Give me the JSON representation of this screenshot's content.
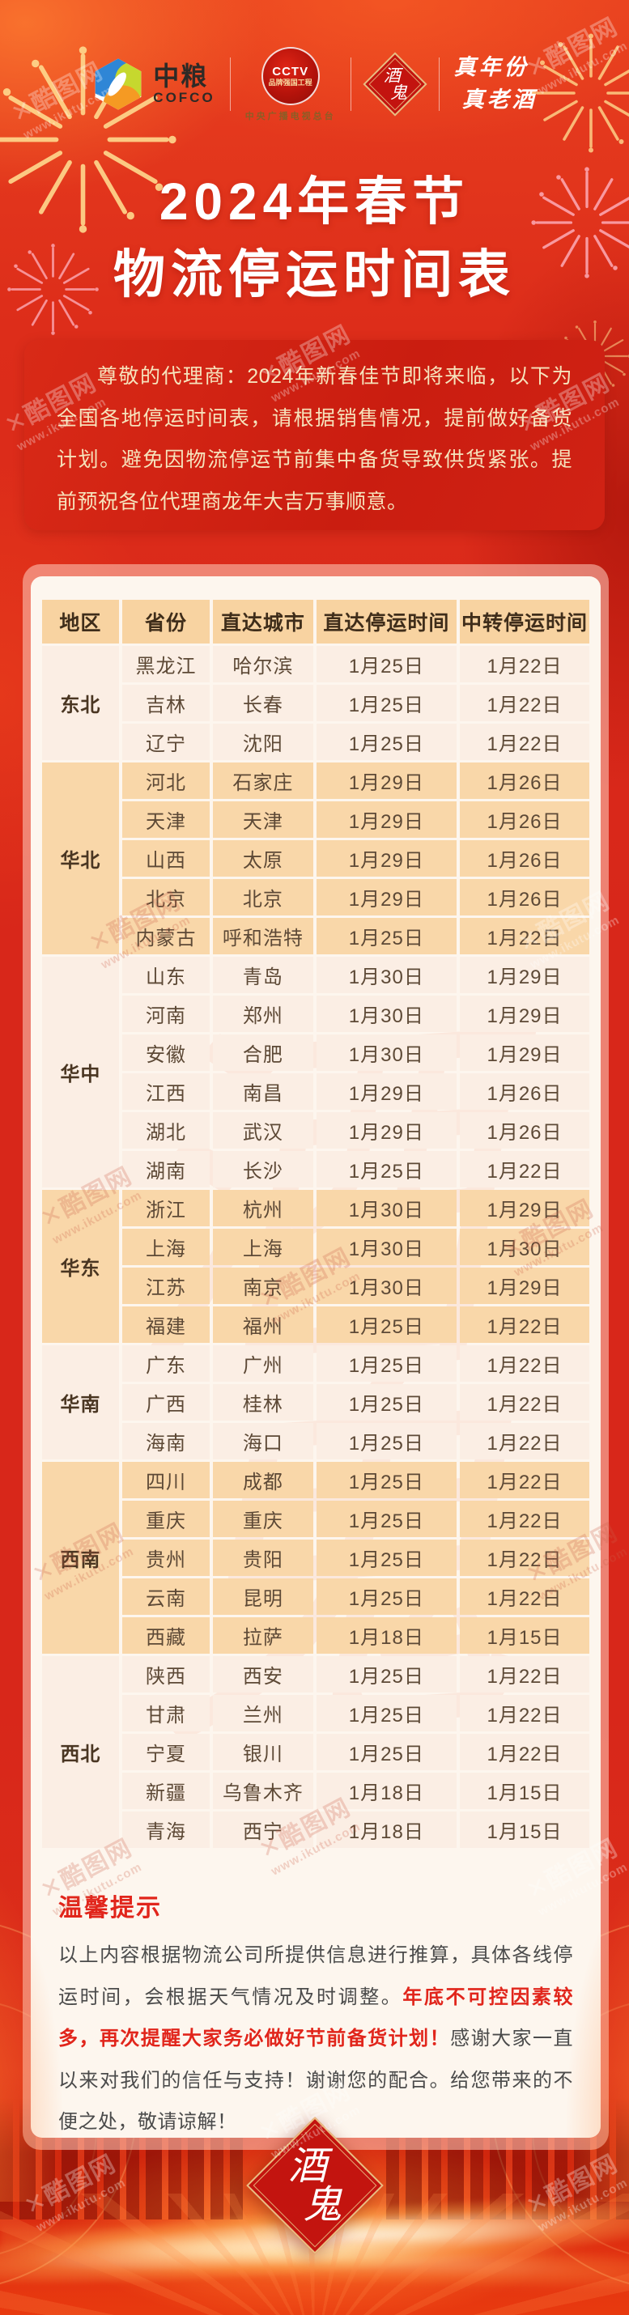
{
  "header": {
    "cofco": {
      "cn": "中粮",
      "en": "COFCO"
    },
    "cctv": {
      "line1": "CCTV",
      "line2": "品牌强国工程",
      "caption": "中央广播电视总台"
    },
    "badge": {
      "char1": "酒",
      "char2": "鬼"
    },
    "slogan": {
      "line1": "真年份",
      "line2": "真老酒"
    }
  },
  "title": {
    "line1": "2024年春节",
    "line2": "物流停运时间表"
  },
  "notice": {
    "text": "尊敬的代理商：2024年新春佳节即将来临，以下为全国各地停运时间表，请根据销售情况，提前做好备货计划。避免因物流停运节前集中备货导致供货紧张。提前预祝各位代理商龙年大吉万事顺意。"
  },
  "table": {
    "headers": [
      "地区",
      "省份",
      "直达城市",
      "直达停运时间",
      "中转停运时间"
    ],
    "groups": [
      {
        "region": "东北",
        "shaded": false,
        "rows": [
          [
            "黑龙江",
            "哈尔滨",
            "1月25日",
            "1月22日"
          ],
          [
            "吉林",
            "长春",
            "1月25日",
            "1月22日"
          ],
          [
            "辽宁",
            "沈阳",
            "1月25日",
            "1月22日"
          ]
        ]
      },
      {
        "region": "华北",
        "shaded": true,
        "rows": [
          [
            "河北",
            "石家庄",
            "1月29日",
            "1月26日"
          ],
          [
            "天津",
            "天津",
            "1月29日",
            "1月26日"
          ],
          [
            "山西",
            "太原",
            "1月29日",
            "1月26日"
          ],
          [
            "北京",
            "北京",
            "1月29日",
            "1月26日"
          ],
          [
            "内蒙古",
            "呼和浩特",
            "1月25日",
            "1月22日"
          ]
        ]
      },
      {
        "region": "华中",
        "shaded": false,
        "rows": [
          [
            "山东",
            "青岛",
            "1月30日",
            "1月29日"
          ],
          [
            "河南",
            "郑州",
            "1月30日",
            "1月29日"
          ],
          [
            "安徽",
            "合肥",
            "1月30日",
            "1月29日"
          ],
          [
            "江西",
            "南昌",
            "1月29日",
            "1月26日"
          ],
          [
            "湖北",
            "武汉",
            "1月29日",
            "1月26日"
          ],
          [
            "湖南",
            "长沙",
            "1月25日",
            "1月22日"
          ]
        ]
      },
      {
        "region": "华东",
        "shaded": true,
        "rows": [
          [
            "浙江",
            "杭州",
            "1月30日",
            "1月29日"
          ],
          [
            "上海",
            "上海",
            "1月30日",
            "1月30日"
          ],
          [
            "江苏",
            "南京",
            "1月30日",
            "1月29日"
          ],
          [
            "福建",
            "福州",
            "1月25日",
            "1月22日"
          ]
        ]
      },
      {
        "region": "华南",
        "shaded": false,
        "rows": [
          [
            "广东",
            "广州",
            "1月25日",
            "1月22日"
          ],
          [
            "广西",
            "桂林",
            "1月25日",
            "1月22日"
          ],
          [
            "海南",
            "海口",
            "1月25日",
            "1月22日"
          ]
        ]
      },
      {
        "region": "西南",
        "shaded": true,
        "rows": [
          [
            "四川",
            "成都",
            "1月25日",
            "1月22日"
          ],
          [
            "重庆",
            "重庆",
            "1月25日",
            "1月22日"
          ],
          [
            "贵州",
            "贵阳",
            "1月25日",
            "1月22日"
          ],
          [
            "云南",
            "昆明",
            "1月25日",
            "1月22日"
          ],
          [
            "西藏",
            "拉萨",
            "1月18日",
            "1月15日"
          ]
        ]
      },
      {
        "region": "西北",
        "shaded": false,
        "rows": [
          [
            "陕西",
            "西安",
            "1月25日",
            "1月22日"
          ],
          [
            "甘肃",
            "兰州",
            "1月25日",
            "1月22日"
          ],
          [
            "宁夏",
            "银川",
            "1月25日",
            "1月22日"
          ],
          [
            "新疆",
            "乌鲁木齐",
            "1月18日",
            "1月15日"
          ],
          [
            "青海",
            "西宁",
            "1月18日",
            "1月15日"
          ]
        ]
      }
    ]
  },
  "tips": {
    "title": "温馨提示",
    "part1": "以上内容根据物流公司所提供信息进行推算，具体各线停运时间，会根据天气情况及时调整。",
    "highlight": "年底不可控因素较多，再次提醒大家务必做好节前备货计划！",
    "part2": "感谢大家一直以来对我们的信任与支持！谢谢您的配合。给您带来的不便之处，敬请谅解！"
  },
  "footer_badge": {
    "char1": "酒",
    "char2": "鬼"
  },
  "background_calligraphy": {
    "char1": "酒",
    "char2": "鬼"
  },
  "watermark": {
    "brand": "✕酷图网",
    "url": "www.ikutu.com"
  },
  "colors": {
    "background_red": "#D8271A",
    "notice_red": "#CA1D10",
    "header_peach": "#F8D3A1",
    "row_shaded": "#F9D7A9",
    "row_plain": "#FBEEE4",
    "cell_text": "#5D4936",
    "highlight_red": "#E1251B",
    "gold_border": "#E9BE82"
  }
}
